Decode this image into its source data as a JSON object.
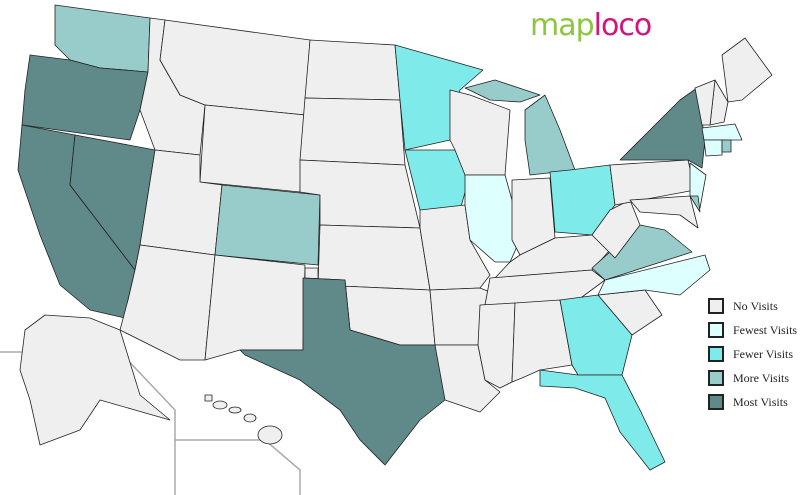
{
  "logo": {
    "part1": "map",
    "part2": "loco",
    "color1": "#8cc63f",
    "color2": "#d4127a"
  },
  "legend": [
    {
      "key": "none",
      "label": "No Visits",
      "color": "#efefef"
    },
    {
      "key": "fewest",
      "label": "Fewest Visits",
      "color": "#ddfffd"
    },
    {
      "key": "fewer",
      "label": "Fewer Visits",
      "color": "#7eebea"
    },
    {
      "key": "more",
      "label": "More Visits",
      "color": "#98cccb"
    },
    {
      "key": "most",
      "label": "Most Visits",
      "color": "#5f8a89"
    }
  ],
  "visits": {
    "WA": "more",
    "OR": "most",
    "CA": "most",
    "NV": "most",
    "ID": "none",
    "MT": "none",
    "WY": "none",
    "UT": "none",
    "CO": "more",
    "AZ": "none",
    "NM": "none",
    "ND": "none",
    "SD": "none",
    "NE": "none",
    "KS": "none",
    "OK": "none",
    "TX": "most",
    "MN": "fewer",
    "IA": "fewer",
    "MO": "none",
    "AR": "none",
    "LA": "none",
    "WI": "none",
    "IL": "fewest",
    "MI": "more",
    "IN": "none",
    "OH": "fewer",
    "KY": "none",
    "TN": "none",
    "MS": "none",
    "AL": "none",
    "GA": "fewer",
    "FL": "fewer",
    "SC": "none",
    "NC": "fewest",
    "VA": "more",
    "WV": "none",
    "PA": "none",
    "NY": "most",
    "NJ": "fewest",
    "MD": "none",
    "DE": "more",
    "ME": "none",
    "NH": "none",
    "VT": "none",
    "MA": "fewest",
    "CT": "fewest",
    "RI": "more",
    "AK": "none",
    "HI": "none"
  }
}
